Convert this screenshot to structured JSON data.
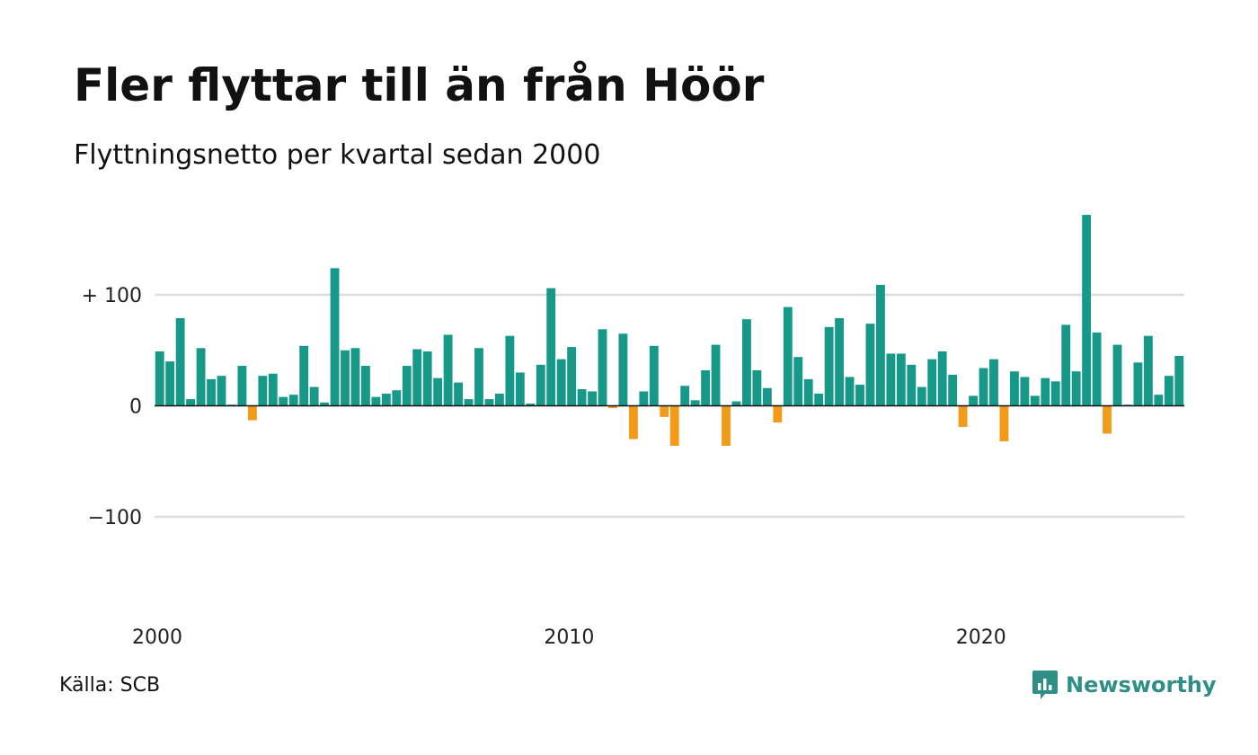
{
  "header": {
    "title": "Fler flyttar till än från Höör",
    "subtitle": "Flyttningsnetto per kvartal sedan 2000"
  },
  "footer": {
    "source": "Källa: SCB",
    "brand": "Newsworthy"
  },
  "colors": {
    "positive": "#17998a",
    "negative": "#f29b18",
    "grid": "#dddddd",
    "zero_line": "#111111",
    "brand": "#2f8f86"
  },
  "icons": {
    "brand_logo": "bar-chart-speech-bubble-icon"
  },
  "chart_data": {
    "type": "bar",
    "title": "Fler flyttar till än från Höör",
    "subtitle": "Flyttningsnetto per kvartal sedan 2000",
    "xlabel": "",
    "ylabel": "",
    "ylim": [
      -200,
      185
    ],
    "grid": true,
    "y_ticks": [
      {
        "value": 100,
        "label": "+ 100"
      },
      {
        "value": 0,
        "label": "0"
      },
      {
        "value": -100,
        "label": "−100"
      }
    ],
    "x_ticks": [
      {
        "value": 2000,
        "label": "2000"
      },
      {
        "value": 2010,
        "label": "2010"
      },
      {
        "value": 2020,
        "label": "2020"
      }
    ],
    "start_year": 2000,
    "series": [
      {
        "values": [
          49,
          40,
          79,
          6,
          52,
          24,
          27,
          1,
          36,
          -13,
          27,
          29,
          8,
          10,
          54,
          17,
          3,
          124,
          50,
          52,
          36,
          8,
          11,
          14,
          36,
          51,
          49,
          25,
          64,
          21,
          6,
          52,
          6,
          11,
          63,
          30,
          2,
          37,
          106,
          42,
          53,
          15,
          13,
          69,
          -2,
          65,
          -30,
          13,
          54,
          -10,
          -36,
          18,
          5,
          32,
          55,
          -36,
          4,
          78,
          32,
          16,
          -15,
          89,
          44,
          24,
          11,
          71,
          79,
          26,
          19,
          74,
          109,
          47,
          47,
          37,
          17,
          42,
          49,
          28,
          -19,
          9,
          34,
          42,
          -32,
          31,
          26,
          9,
          25,
          22,
          73,
          31,
          172,
          66,
          -25,
          55,
          1,
          39,
          63,
          10,
          27,
          45
        ]
      }
    ]
  }
}
